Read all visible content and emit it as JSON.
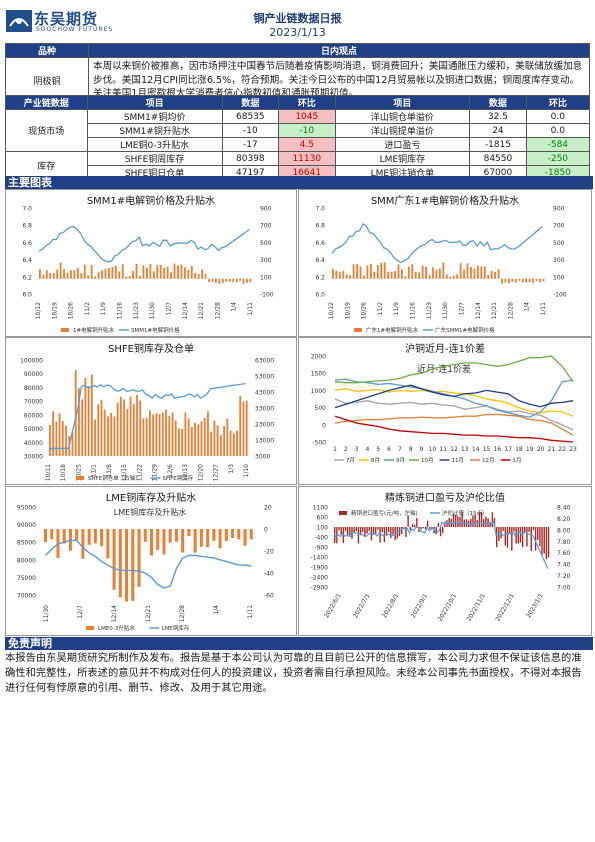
{
  "header": {
    "logo_cn": "东吴期货",
    "logo_en": "SOOCHOW FUTURES",
    "title": "铜产业链数据日报",
    "date": "2023/1/13"
  },
  "view": {
    "col1": "品种",
    "col2": "日内观点",
    "product": "阴极铜",
    "text": "本周以来铜价被推高，因市场押注中国春节后随着疫情影响消退，铜消费回升；美国通胀压力缓和，美联储放缓加息步伐。美国12月CPI同比涨6.5%，符合预期。关注今日公布的中国12月贸易帐以及铜进口数据；铜周度库存变动。关注美国1月密歇根大学消费者信心指数初值和通胀预期初值。"
  },
  "industry": {
    "headers": [
      "产业链数据",
      "项目",
      "数据",
      "环比",
      "项目",
      "数据",
      "环比"
    ],
    "spot_label": "现货市场",
    "stock_label": "库存",
    "rows": [
      {
        "item": "SMM1#铜均价",
        "value": "68535",
        "chg": "1045",
        "chg_type": "red",
        "item2": "洋山铜仓单溢价",
        "value2": "32.5",
        "chg2": "0.0",
        "chg2_type": "none"
      },
      {
        "item": "SMM1#铜升贴水",
        "value": "-10",
        "chg": "-10",
        "chg_type": "grn",
        "item2": "洋山铜提单溢价",
        "value2": "24",
        "chg2": "0.0",
        "chg2_type": "none"
      },
      {
        "item": "LME铜0-3升贴水",
        "value": "-17",
        "chg": "4.5",
        "chg_type": "red",
        "item2": "进口盈亏",
        "value2": "-1815",
        "chg2": "-584",
        "chg2_type": "grn"
      },
      {
        "item": "SHFE铜周库存",
        "value": "80398",
        "chg": "11130",
        "chg_type": "red",
        "item2": "LME铜库存",
        "value2": "84550",
        "chg2": "-250",
        "chg2_type": "grn"
      },
      {
        "item": "SHFE铜日仓单",
        "value": "47197",
        "chg": "16641",
        "chg_type": "red",
        "item2": "LME铜注销仓单",
        "value2": "67000",
        "chg2": "-1850",
        "chg2_type": "grn"
      }
    ]
  },
  "sections": {
    "charts": "主要图表",
    "disclaimer": "免责声明"
  },
  "disclaimer_text": "本报告由东吴期货研究所制作及发布。报告是基于本公司认为可靠的且目前已公开的信息撰写，本公司力求但不保证该信息的准确性和完整性，所表述的意见并不构成对任何人的投资建议，投资者需自行承担风险。未经本公司事先书面授权，不得对本报告进行任何有悖原意的引用、删节、修改、及用于其它用途。",
  "charts": {
    "c1": {
      "title": "SMM1#电解铜价格及升贴水",
      "unit": "x 10000",
      "y_left": [
        "7.0",
        "6.8",
        "6.6",
        "6.4",
        "6.2",
        "6.0"
      ],
      "y_right": [
        "900",
        "700",
        "500",
        "300",
        "100",
        "-100"
      ],
      "x": [
        "10/12",
        "10/19",
        "10/26",
        "11/2",
        "11/9",
        "11/16",
        "11/23",
        "11/30",
        "12/7",
        "12/14",
        "12/21",
        "12/28",
        "1/4",
        "1/11"
      ],
      "legend": [
        "1#电解铜升贴水",
        "SMM1#电解铜价格"
      ]
    },
    "c2": {
      "title": "SMM广东1#电解铜价格及升贴水",
      "unit": "x 10000",
      "y_left": [
        "7.0",
        "6.8",
        "6.6",
        "6.4",
        "6.2",
        "6.0"
      ],
      "y_right": [
        "900",
        "700",
        "500",
        "300",
        "100",
        "-100"
      ],
      "x": [
        "10/12",
        "10/19",
        "10/26",
        "11/2",
        "11/9",
        "11/16",
        "11/23",
        "11/30",
        "12/7",
        "12/14",
        "12/21",
        "12/28",
        "1/4",
        "1/11"
      ],
      "legend": [
        "广东1#电解铜升贴水",
        "广东SMM1#电解铜价格"
      ]
    },
    "c3": {
      "title": "SHFE铜库存及仓单",
      "y_left": [
        "100000",
        "90000",
        "80000",
        "70000",
        "60000",
        "50000",
        "40000",
        "30000"
      ],
      "y_right": [
        "63000",
        "53000",
        "43000",
        "33000",
        "23000",
        "13000",
        "3000"
      ],
      "x": [
        "10/11",
        "10/18",
        "10/25",
        "11/1",
        "11/8",
        "11/15",
        "11/22",
        "11/29",
        "12/6",
        "12/13",
        "12/20",
        "12/27",
        "1/3",
        "1/10"
      ],
      "legend": [
        "SHFE铜仓单（右轴）",
        "SHFE铜库存"
      ]
    },
    "c4": {
      "title": "沪铜近月-连1价差",
      "inner_title": "近月-连1价差",
      "y_left": [
        "2000",
        "1500",
        "1000",
        "500",
        "0",
        "-500"
      ],
      "x": [
        "1",
        "3",
        "5",
        "7",
        "9",
        "11",
        "13",
        "15",
        "17",
        "19",
        "21",
        "23"
      ],
      "x_last": [
        "22",
        "23"
      ],
      "legend": [
        "7月",
        "8月",
        "9月",
        "10月",
        "11月",
        "12月",
        "1月"
      ]
    },
    "c5": {
      "title": "LME铜库存及升贴水",
      "inner_title": "LME铜库存及升贴水",
      "y_left": [
        "95000",
        "90000",
        "85000",
        "80000",
        "75000",
        "70000"
      ],
      "y_right": [
        "20",
        "0",
        "-20",
        "-40",
        "-60"
      ],
      "x": [
        "11/30",
        "12/7",
        "12/14",
        "12/21",
        "12/28",
        "1/4",
        "1/11"
      ],
      "legend": [
        "LME0-3升贴水",
        "LME铜库存"
      ]
    },
    "c6": {
      "title": "精炼铜进口盈亏及沪伦比值",
      "y_left": [
        "1100",
        "600",
        "100",
        "-400",
        "-900",
        "-1400",
        "-1900",
        "-2400",
        "-2900"
      ],
      "y_right": [
        "8.40",
        "8.20",
        "8.00",
        "7.80",
        "7.60",
        "7.40",
        "7.20",
        "7.00"
      ],
      "x": [
        "2022/6/1",
        "2022/7/1",
        "2022/8/1",
        "2022/9/1",
        "2022/10/1",
        "2022/11/1",
        "2022/12/1",
        "2023/1/1"
      ],
      "legend": [
        "精铜进口盈亏(元/吨，左轴)",
        "沪伦比值（15点）"
      ]
    }
  }
}
